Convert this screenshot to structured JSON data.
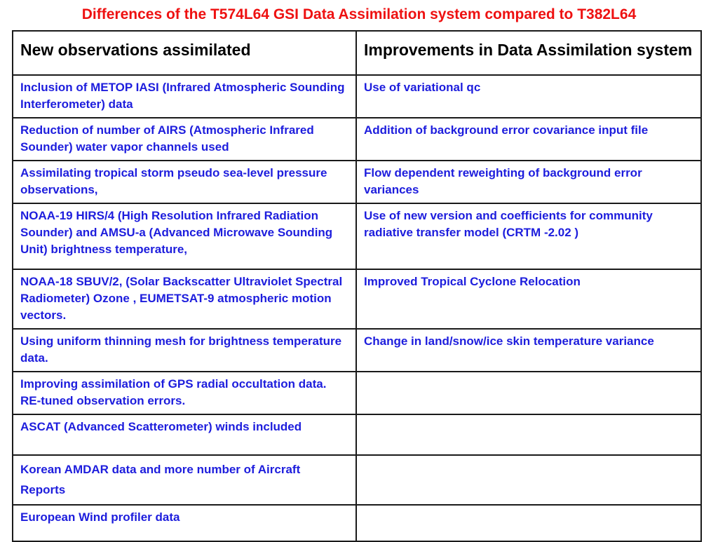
{
  "title": "Differences of the T574L64 GSI Data Assimilation system compared to T382L64",
  "table": {
    "headers": [
      "New observations assimilated",
      "Improvements in Data Assimilation system"
    ],
    "rows": [
      [
        "Inclusion of METOP IASI (Infrared Atmospheric Sounding Interferometer) data",
        "Use of variational qc"
      ],
      [
        "Reduction of number of AIRS (Atmospheric Infrared Sounder) water vapor channels used",
        "Addition of background error covariance input file"
      ],
      [
        "Assimilating tropical storm pseudo sea-level pressure observations,",
        "Flow dependent reweighting of background error variances"
      ],
      [
        "NOAA-19 HIRS/4 (High Resolution Infrared Radiation Sounder) and AMSU-a (Advanced Microwave Sounding Unit) brightness temperature,",
        "Use of new version and coefficients for community radiative transfer model (CRTM -2.02 )"
      ],
      [
        "NOAA-18 SBUV/2, (Solar Backscatter Ultraviolet Spectral Radiometer) Ozone , EUMETSAT-9 atmospheric motion vectors.",
        "Improved Tropical Cyclone Relocation"
      ],
      [
        "Using uniform thinning mesh for brightness temperature data.",
        "Change in land/snow/ice skin temperature variance"
      ],
      [
        "Improving assimilation of GPS radial occultation data. RE-tuned observation errors.",
        ""
      ],
      [
        "ASCAT (Advanced Scatterometer) winds included",
        ""
      ],
      [
        "Korean AMDAR data and more number of Aircraft Reports",
        ""
      ],
      [
        "European Wind profiler data",
        ""
      ]
    ]
  },
  "colors": {
    "title": "#ee1111",
    "cell_text": "#1d1ddd",
    "header_text": "#000000",
    "border": "#1a1a1a"
  }
}
